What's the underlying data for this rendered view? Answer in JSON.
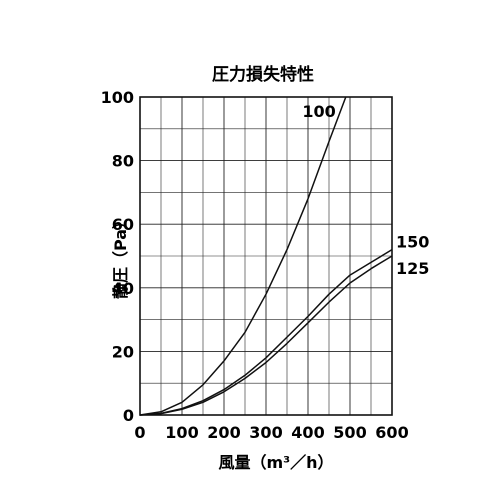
{
  "chart_data": {
    "type": "line",
    "title": "圧力損失特性",
    "xlabel": "風量（m³／h）",
    "ylabel": "静圧（Pa）",
    "xlim": [
      0,
      600
    ],
    "ylim": [
      0,
      100
    ],
    "x_ticks": [
      "0",
      "100",
      "200",
      "300",
      "400",
      "500",
      "600"
    ],
    "y_ticks": [
      "0",
      "20",
      "40",
      "60",
      "80",
      "100"
    ],
    "grid": true,
    "series": [
      {
        "name": "100",
        "x": [
          0,
          50,
          100,
          150,
          200,
          250,
          300,
          350,
          400,
          450,
          490
        ],
        "y": [
          0,
          1,
          4,
          9.5,
          17,
          26,
          38,
          52,
          68,
          86,
          100
        ]
      },
      {
        "name": "150",
        "x": [
          0,
          50,
          100,
          150,
          200,
          250,
          300,
          350,
          400,
          450,
          500,
          550,
          600
        ],
        "y": [
          0,
          0.5,
          2,
          4.5,
          8,
          12.5,
          18,
          24.5,
          31,
          38,
          44,
          48,
          52
        ]
      },
      {
        "name": "125",
        "x": [
          0,
          50,
          100,
          150,
          200,
          250,
          300,
          350,
          400,
          450,
          500,
          550,
          600
        ],
        "y": [
          0,
          0.4,
          1.8,
          4,
          7.3,
          11.5,
          16.5,
          22.5,
          29,
          35.5,
          41.5,
          46,
          50
        ]
      }
    ]
  }
}
